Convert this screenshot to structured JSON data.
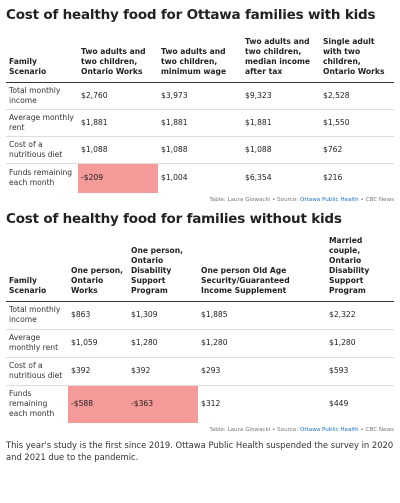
{
  "table1": {
    "title": "Cost of healthy food for Ottawa families with kids",
    "header": [
      "Family Scenario",
      "Two adults and two children, Ontario Works",
      "Two adults and two children, minimum wage",
      "Two adults and two children, median income after tax",
      "Single adult with two children, Ontario Works"
    ],
    "rows": [
      [
        "Total monthly income",
        "$2,760",
        "$3,973",
        "$9,323",
        "$2,528"
      ],
      [
        "Average monthly rent",
        "$1,881",
        "$1,881",
        "$1,881",
        "$1,550"
      ],
      [
        "Cost of a nutritious diet",
        "$1,088",
        "$1,088",
        "$1,088",
        "$762"
      ],
      [
        "Funds remaining each month",
        "-$209",
        "$1,004",
        "$6,354",
        "$216"
      ]
    ],
    "source": {
      "prefix": "Table: Laura Glowacki • Source: ",
      "link": "Ottawa Public Health",
      "suffix": " • CBC News"
    }
  },
  "table2": {
    "title": "Cost of healthy food for families without kids",
    "header": [
      "Family Scenario",
      "One person, Ontario Works",
      "One person, Ontario Disability Support Program",
      "One person Old Age Security/Guaranteed Income Supplement",
      "Married couple, Ontario Disability Support Program"
    ],
    "rows": [
      [
        "Total monthly income",
        "$863",
        "$1,309",
        "$1,885",
        "$2,322"
      ],
      [
        "Average monthly rent",
        "$1,059",
        "$1,280",
        "$1,280",
        "$1,280"
      ],
      [
        "Cost of a nutritious diet",
        "$392",
        "$392",
        "$293",
        "$593"
      ],
      [
        "Funds remaining each month",
        "-$588",
        "-$363",
        "$312",
        "$449"
      ]
    ],
    "source": {
      "prefix": "Table: Laura Glowacki • Source: ",
      "link": "Ottawa Public Health",
      "suffix": " • CBC News"
    }
  },
  "footer": "This year's study is the first since 2019. Ottawa Public Health suspended the survey in 2020 and 2021 due to the pandemic."
}
